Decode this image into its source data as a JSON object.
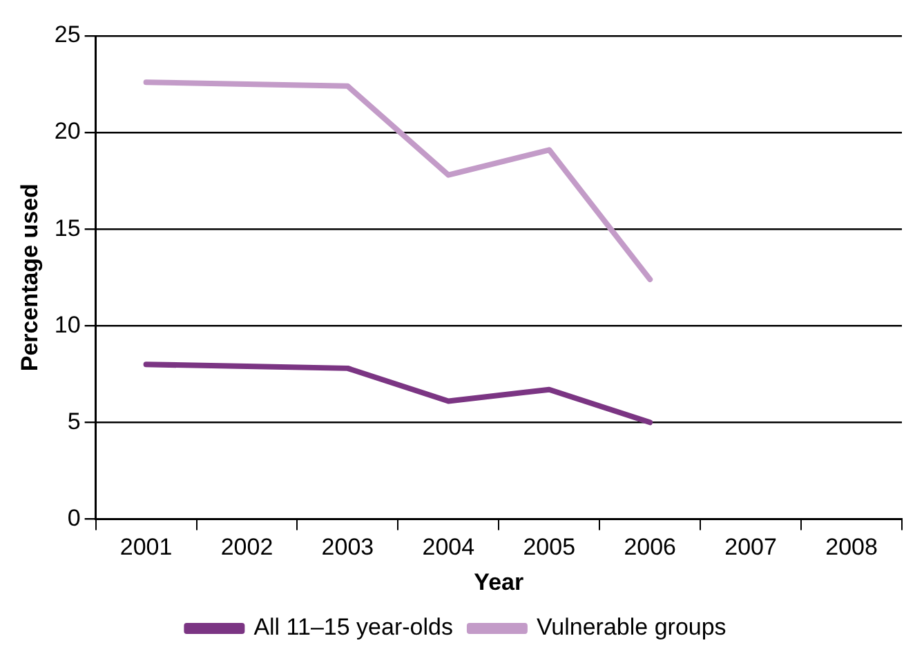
{
  "chart_data": {
    "type": "line",
    "xlabel": "Year",
    "ylabel": "Percentage used",
    "categories": [
      "2001",
      "2002",
      "2003",
      "2004",
      "2005",
      "2006",
      "2007",
      "2008"
    ],
    "series": [
      {
        "name": "All 11–15 year-olds",
        "color": "#7b3583",
        "values": [
          8.0,
          7.9,
          7.8,
          6.1,
          6.7,
          5.0,
          null,
          null
        ]
      },
      {
        "name": "Vulnerable groups",
        "color": "#c39bc8",
        "values": [
          22.6,
          22.5,
          22.4,
          17.8,
          19.1,
          12.4,
          null,
          null
        ]
      }
    ],
    "ylim": [
      0,
      25
    ],
    "yticks": [
      0,
      5,
      10,
      15,
      20,
      25
    ],
    "grid": "y",
    "legend": "bottom",
    "marker": "none",
    "line_style": "solid"
  }
}
